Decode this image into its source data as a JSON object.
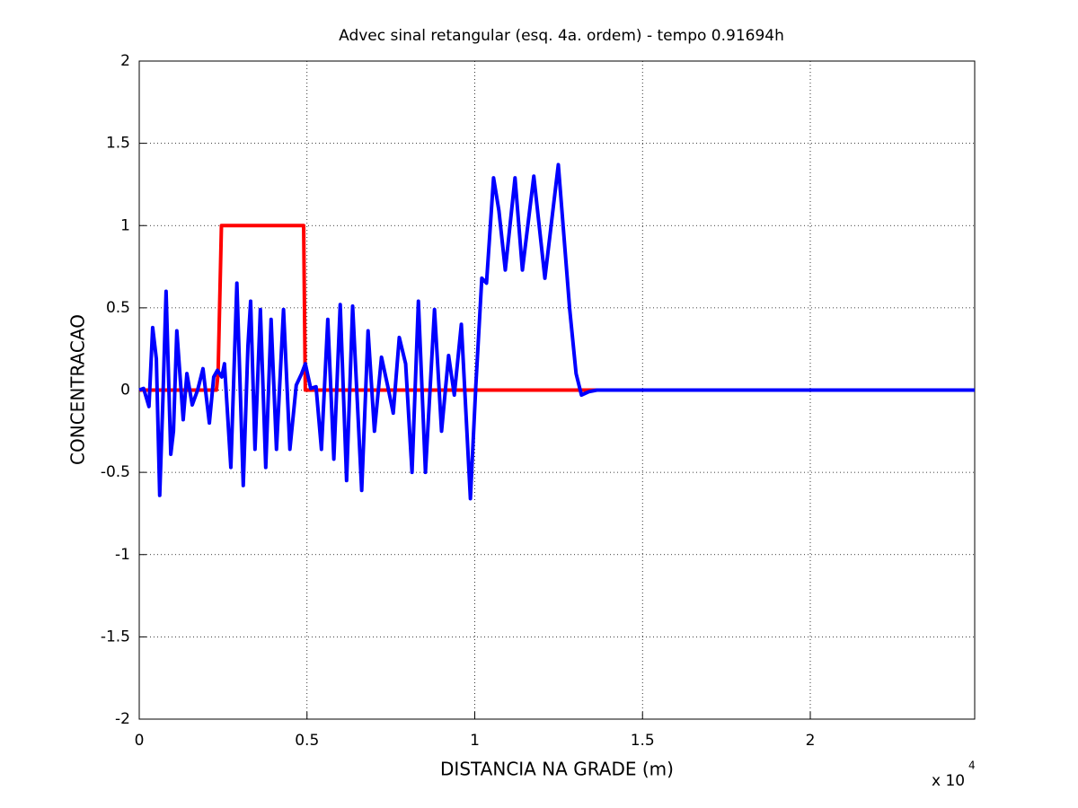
{
  "chart_data": {
    "type": "line",
    "title": "Advec sinal retangular (esq. 4a. ordem) - tempo 0.91694h",
    "xlabel": "DISTANCIA NA GRADE (m)",
    "ylabel": "CONCENTRACAO",
    "x_exponent_base": "x 10",
    "x_exponent": "4",
    "xlim": [
      0,
      24900
    ],
    "ylim": [
      -2,
      2
    ],
    "xticks": [
      {
        "value": 0,
        "label": "0"
      },
      {
        "value": 5000,
        "label": "0.5"
      },
      {
        "value": 10000,
        "label": "1"
      },
      {
        "value": 15000,
        "label": "1.5"
      },
      {
        "value": 20000,
        "label": "2"
      }
    ],
    "yticks": [
      -2,
      -1.5,
      -1,
      -0.5,
      0,
      0.5,
      1,
      1.5,
      2
    ],
    "grid": true,
    "series": [
      {
        "color": "#ff0000",
        "x": [
          0,
          2300,
          2350,
          2450,
          4900,
          4950,
          24900
        ],
        "values": [
          0,
          0,
          0.1,
          1,
          1,
          0,
          0
        ]
      },
      {
        "color": "#0000ff",
        "x": [
          0,
          130,
          290,
          400,
          510,
          610,
          700,
          800,
          940,
          1020,
          1120,
          1310,
          1420,
          1580,
          1740,
          1900,
          2090,
          2220,
          2330,
          2460,
          2540,
          2730,
          2910,
          3100,
          3240,
          3320,
          3450,
          3610,
          3770,
          3930,
          4090,
          4300,
          4490,
          4680,
          4840,
          4950,
          5110,
          5270,
          5430,
          5620,
          5800,
          5990,
          6180,
          6360,
          6630,
          6820,
          7010,
          7220,
          7410,
          7570,
          7750,
          7940,
          8130,
          8320,
          8530,
          8800,
          9010,
          9220,
          9390,
          9600,
          9870,
          10030,
          10210,
          10350,
          10560,
          10720,
          10910,
          11200,
          11420,
          11760,
          12090,
          12490,
          12830,
          13020,
          13180,
          13400,
          13640,
          24900
        ],
        "values": [
          0,
          0.01,
          -0.1,
          0.38,
          0.19,
          -0.64,
          -0.09,
          0.6,
          -0.39,
          -0.25,
          0.36,
          -0.18,
          0.1,
          -0.09,
          0,
          0.13,
          -0.2,
          0.08,
          0.12,
          0.08,
          0.16,
          -0.47,
          0.65,
          -0.58,
          0.27,
          0.54,
          -0.36,
          0.49,
          -0.47,
          0.43,
          -0.36,
          0.49,
          -0.36,
          0.03,
          0.1,
          0.16,
          0.01,
          0.02,
          -0.36,
          0.43,
          -0.42,
          0.52,
          -0.55,
          0.51,
          -0.61,
          0.36,
          -0.25,
          0.2,
          0.02,
          -0.14,
          0.32,
          0.16,
          -0.5,
          0.54,
          -0.5,
          0.49,
          -0.25,
          0.21,
          -0.03,
          0.4,
          -0.66,
          0.02,
          0.68,
          0.65,
          1.29,
          1.09,
          0.73,
          1.29,
          0.73,
          1.3,
          0.68,
          1.37,
          0.49,
          0.1,
          -0.03,
          -0.01,
          0,
          0
        ]
      }
    ]
  }
}
